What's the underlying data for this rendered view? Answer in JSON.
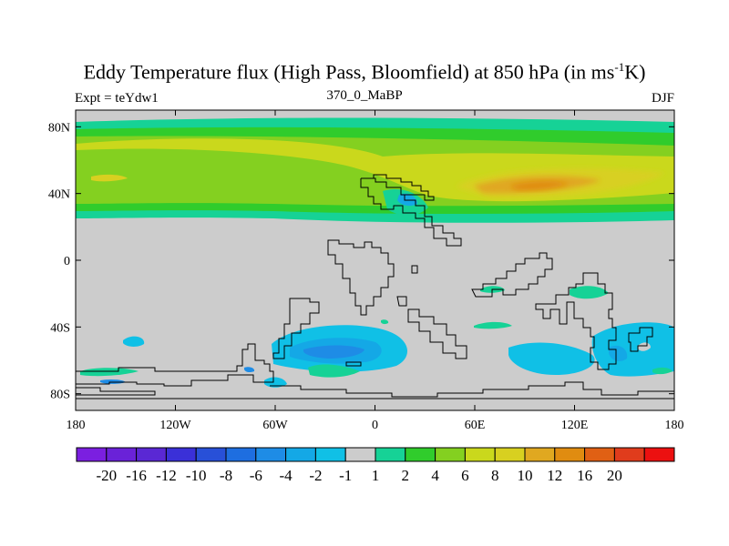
{
  "title": {
    "before_sup": "Eddy Temperature flux (High Pass, Bloomfield) at 850 hPa (in ms",
    "sup": "-1",
    "after_sup": "K)"
  },
  "subtitle_left": "Expt = teYdw1",
  "subtitle_center": "370_0_MaBP",
  "subtitle_right": "DJF",
  "lon_ticks": [
    {
      "value": -180,
      "label": "180"
    },
    {
      "value": -120,
      "label": "120W"
    },
    {
      "value": -60,
      "label": "60W"
    },
    {
      "value": 0,
      "label": "0"
    },
    {
      "value": 60,
      "label": "60E"
    },
    {
      "value": 120,
      "label": "120E"
    },
    {
      "value": 180,
      "label": "180"
    }
  ],
  "lat_ticks": [
    {
      "value": 80,
      "label": "80N"
    },
    {
      "value": 40,
      "label": "40N"
    },
    {
      "value": 0,
      "label": "0"
    },
    {
      "value": -40,
      "label": "40S"
    },
    {
      "value": -80,
      "label": "80S"
    }
  ],
  "colorbar": {
    "colors": [
      "#7b1fe0",
      "#6a22d8",
      "#5a28d4",
      "#3a30d8",
      "#2850d8",
      "#1e6ee0",
      "#1e8ce6",
      "#14a8e6",
      "#10c0e6",
      "#cccccc",
      "#16d296",
      "#30cc2c",
      "#84d020",
      "#cad81c",
      "#d8d020",
      "#e0a820",
      "#e08c10",
      "#e06014",
      "#e03c1c",
      "#ec1010"
    ],
    "labels": [
      "-20",
      "-16",
      "-12",
      "-10",
      "-8",
      "-6",
      "-4",
      "-2",
      "-1",
      "1",
      "2",
      "4",
      "6",
      "8",
      "10",
      "12",
      "16",
      "20"
    ]
  }
}
